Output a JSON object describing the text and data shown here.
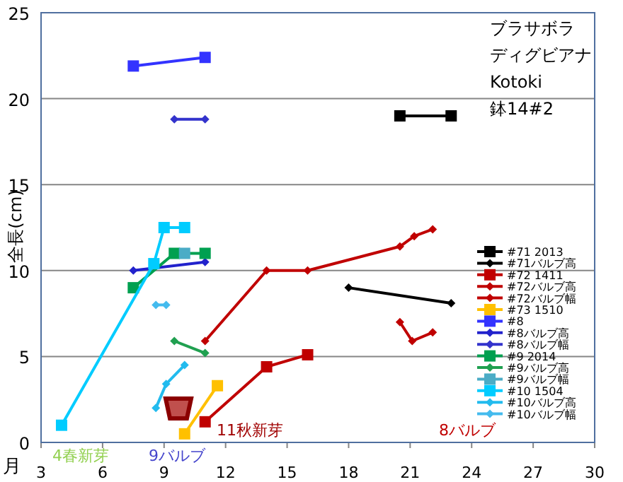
{
  "chart_data": {
    "type": "line",
    "title": "ブラサボラ",
    "subtitle": "ディグビアナ",
    "xlabel": "月",
    "ylabel": "全長(cm)",
    "xlim": [
      3,
      30
    ],
    "xticks": [
      3,
      6,
      9,
      12,
      15,
      18,
      21,
      24,
      27,
      30
    ],
    "ylim": [
      0,
      25
    ],
    "yticks": [
      0,
      5,
      10,
      15,
      20,
      25
    ],
    "grid": "y",
    "legend": "right",
    "line_style": "solid",
    "annotations": [
      "Kotoki",
      "鉢14#2",
      "4春新芽",
      "9バルブ",
      "11秋新芽",
      "8バルブ"
    ],
    "series": [
      {
        "name": "#71 2013",
        "color": "#000000",
        "marker": "square",
        "x": [
          20.5,
          23
        ],
        "values": [
          19.0,
          19.0
        ]
      },
      {
        "name": "#71バルブ高",
        "color": "#000000",
        "marker": "diamond",
        "x": [
          18,
          23
        ],
        "values": [
          9.0,
          8.1
        ]
      },
      {
        "name": "#72 1411",
        "color": "#c00000",
        "marker": "square",
        "x": [
          11,
          14,
          16
        ],
        "values": [
          1.2,
          4.4,
          5.1
        ]
      },
      {
        "name": "#72バルブ高",
        "color": "#c00000",
        "marker": "diamond",
        "x": [
          20.5,
          21.1,
          22.1
        ],
        "values": [
          7.0,
          5.9,
          6.4
        ]
      },
      {
        "name": "#72バルブ幅",
        "color": "#c00000",
        "marker": "diamond",
        "x": [
          11,
          14,
          16,
          20.5,
          21.2,
          22.1
        ],
        "values": [
          5.9,
          10.0,
          10.0,
          11.4,
          12.0,
          12.4
        ]
      },
      {
        "name": "#73 1510",
        "color": "#ffc000",
        "marker": "square",
        "x": [
          10,
          11.6
        ],
        "values": [
          0.5,
          3.3
        ]
      },
      {
        "name": "#8",
        "color": "#3333ff",
        "marker": "square",
        "x": [
          7.5,
          11
        ],
        "values": [
          21.9,
          22.4
        ]
      },
      {
        "name": "#8バルブ高",
        "color": "#2222cc",
        "marker": "diamond",
        "x": [
          7.5,
          11
        ],
        "values": [
          10.0,
          10.5
        ]
      },
      {
        "name": "#8バルブ幅",
        "color": "#3333cc",
        "marker": "diamond",
        "x": [
          9.5,
          11
        ],
        "values": [
          18.8,
          18.8
        ]
      },
      {
        "name": "#9 2014",
        "color": "#00a050",
        "marker": "square",
        "x": [
          7.5,
          9.5,
          11
        ],
        "values": [
          9.0,
          11.0,
          11.0
        ]
      },
      {
        "name": "#9バルブ高",
        "color": "#20a050",
        "marker": "diamond",
        "x": [
          9.5,
          11
        ],
        "values": [
          5.9,
          5.2
        ]
      },
      {
        "name": "#9バルブ幅",
        "color": "#4bacc6",
        "marker": "square",
        "x": [
          10
        ],
        "values": [
          11.0
        ]
      },
      {
        "name": "#10 1504",
        "color": "#00ccff",
        "marker": "square",
        "x": [
          4,
          8.5,
          9,
          10
        ],
        "values": [
          1.0,
          10.4,
          12.5,
          12.5
        ]
      },
      {
        "name": "#10バルブ高",
        "color": "#22bbee",
        "marker": "diamond",
        "x": [
          8.6,
          9.1,
          10
        ],
        "values": [
          2.0,
          3.4,
          4.5
        ]
      },
      {
        "name": "#10バルブ幅",
        "color": "#44bbee",
        "marker": "diamond",
        "x": [
          8.6,
          9.1
        ],
        "values": [
          8.0,
          8.0
        ]
      }
    ]
  }
}
